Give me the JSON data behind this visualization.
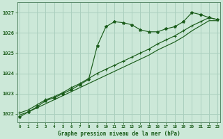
{
  "background_color": "#cce8d8",
  "grid_color": "#aacfbe",
  "line_color": "#1a5c1a",
  "title": "Graphe pression niveau de la mer (hPa)",
  "ylim": [
    1021.6,
    1027.5
  ],
  "yticks": [
    1022,
    1023,
    1024,
    1025,
    1026,
    1027
  ],
  "xlim": [
    -0.3,
    23.3
  ],
  "xticks": [
    0,
    1,
    2,
    3,
    4,
    5,
    6,
    7,
    8,
    9,
    10,
    11,
    12,
    13,
    14,
    15,
    16,
    17,
    18,
    19,
    20,
    21,
    22,
    23
  ],
  "series1": [
    1021.85,
    1022.1,
    1022.35,
    1022.65,
    1022.8,
    1023.0,
    1023.2,
    1023.45,
    1023.7,
    1025.35,
    1026.3,
    1026.55,
    1026.5,
    1026.4,
    1026.15,
    1026.05,
    1026.05,
    1026.2,
    1026.3,
    1026.55,
    1027.0,
    1026.9,
    1026.75,
    1026.65
  ],
  "series2": [
    1022.05,
    1022.2,
    1022.45,
    1022.7,
    1022.85,
    1023.05,
    1023.3,
    1023.5,
    1023.75,
    1024.0,
    1024.2,
    1024.4,
    1024.6,
    1024.8,
    1025.0,
    1025.2,
    1025.45,
    1025.65,
    1025.85,
    1026.1,
    1026.35,
    1026.55,
    1026.75,
    1026.65
  ],
  "series3": [
    1021.95,
    1022.1,
    1022.3,
    1022.5,
    1022.7,
    1022.9,
    1023.1,
    1023.3,
    1023.5,
    1023.7,
    1023.9,
    1024.1,
    1024.3,
    1024.5,
    1024.7,
    1024.9,
    1025.15,
    1025.35,
    1025.55,
    1025.8,
    1026.1,
    1026.35,
    1026.6,
    1026.6
  ]
}
